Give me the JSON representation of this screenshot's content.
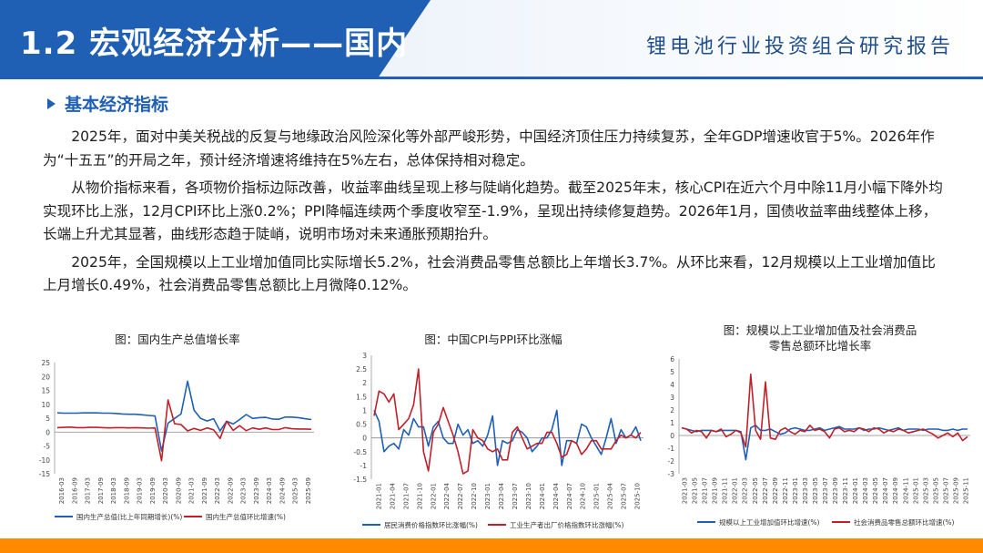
{
  "header": {
    "title": "1.2 宏观经济分析——国内",
    "report_name": "锂电池行业投资组合研究报告"
  },
  "section": {
    "heading": "基本经济指标",
    "paragraphs": [
      "2025年，面对中美关税战的反复与地缘政治风险深化等外部严峻形势，中国经济顶住压力持续复苏，全年GDP增速收官于5%。2026年作为“十五五”的开局之年，预计经济增速将维持在5%左右，总体保持相对稳定。",
      "从物价指标来看，各项物价指标边际改善，收益率曲线呈现上移与陡峭化趋势。截至2025年末，核心CPI在近六个月中除11月小幅下降外均实现环比上涨，12月CPI环比上涨0.2%；PPI降幅连续两个季度收窄至-1.9%，呈现出持续修复趋势。2026年1月，国债收益率曲线整体上移，长端上升尤其显著，曲线形态趋于陡峭，说明市场对未来通胀预期抬升。",
      "2025年，全国规模以上工业增加值同比实际增长5.2%，社会消费品零售总额比上年增长3.7%。从环比来看，12月规模以上工业增加值比上月增长0.49%，社会消费品零售总额比上月微降0.12%。"
    ]
  },
  "colors": {
    "accent": "#1f5fb4",
    "series_blue": "#1f5fb4",
    "series_red": "#c0202a",
    "footer": "#ff8a00"
  },
  "chart_data": [
    {
      "type": "line",
      "title": "图：国内生产总值增长率",
      "ylim": [
        -15,
        25
      ],
      "yticks": [
        "25",
        "20",
        "15",
        "10",
        "5",
        "0",
        "-5",
        "-10",
        "-15"
      ],
      "xticks": [
        "2016-03",
        "2016-09",
        "2017-03",
        "2017-09",
        "2018-03",
        "2018-09",
        "2019-03",
        "2019-09",
        "2020-03",
        "2020-09",
        "2021-03",
        "2021-09",
        "2022-03",
        "2022-09",
        "2023-03",
        "2023-09",
        "2024-03",
        "2024-09",
        "2025-03",
        "2025-09"
      ],
      "series": [
        {
          "name": "国内生产总值(比上年同期增长)(%)",
          "color": "#1f5fb4",
          "values": [
            6.9,
            6.8,
            6.8,
            6.8,
            6.9,
            6.9,
            6.9,
            6.8,
            6.8,
            6.7,
            6.5,
            6.4,
            6.4,
            6.2,
            6.0,
            5.8,
            -6.8,
            3.2,
            4.9,
            6.5,
            18.3,
            7.9,
            4.9,
            4.0,
            4.8,
            0.4,
            3.9,
            2.9,
            4.5,
            6.3,
            4.9,
            5.2,
            5.3,
            4.7,
            4.6,
            5.4,
            5.4,
            5.2,
            4.8,
            4.5
          ]
        },
        {
          "name": "国内生产总值环比增速(%)",
          "color": "#c0202a",
          "values": [
            1.6,
            1.7,
            1.8,
            1.6,
            1.6,
            1.7,
            1.7,
            1.6,
            1.5,
            1.6,
            1.6,
            1.5,
            1.6,
            1.5,
            1.4,
            1.5,
            -10.3,
            11.6,
            3.0,
            2.7,
            0.4,
            1.3,
            0.6,
            1.5,
            0.8,
            -2.3,
            3.9,
            0.6,
            2.3,
            0.5,
            1.5,
            1.0,
            1.5,
            0.9,
            0.9,
            1.6,
            1.2,
            1.1,
            1.1,
            1.0
          ]
        }
      ]
    },
    {
      "type": "line",
      "title": "图：中国CPI与PPI环比涨幅",
      "ylim": [
        -1.5,
        3
      ],
      "yticks": [
        "3",
        "2.5",
        "2",
        "1.5",
        "1",
        "0.5",
        "0",
        "-0.5",
        "-1",
        "-1.5"
      ],
      "xticks": [
        "2021-01",
        "2021-04",
        "2021-07",
        "2021-10",
        "2022-01",
        "2022-04",
        "2022-07",
        "2022-10",
        "2023-01",
        "2023-04",
        "2023-07",
        "2023-10",
        "2024-01",
        "2024-04",
        "2024-07",
        "2024-10",
        "2025-01",
        "2025-04",
        "2025-07",
        "2025-10"
      ],
      "series": [
        {
          "name": "居民消费价格指数环比涨幅(%)",
          "color": "#1f5fb4",
          "values": [
            1.0,
            0.6,
            -0.5,
            -0.3,
            -0.2,
            -0.4,
            0.3,
            0.1,
            0.7,
            0.4,
            0.4,
            -0.3,
            0.4,
            0.6,
            0.0,
            -0.2,
            -0.2,
            0.5,
            0.1,
            0.3,
            -0.2,
            -0.1,
            -0.3,
            0.1,
            0.8,
            -1.0,
            -0.1,
            -0.2,
            -0.1,
            0.3,
            0.2,
            0.0,
            -0.5,
            -0.3,
            0.0,
            0.0,
            0.3,
            1.0,
            -1.0,
            -0.1,
            -0.1,
            -0.2,
            0.5,
            0.4,
            0.0,
            -0.3,
            -0.6,
            0.0,
            0.7,
            -0.2,
            0.3,
            0.0,
            0.1,
            0.4,
            -0.1
          ]
        },
        {
          "name": "工业生产者出厂价格指数环比涨幅(%)",
          "color": "#c0202a",
          "values": [
            0.8,
            1.7,
            1.6,
            1.3,
            1.6,
            0.3,
            0.5,
            0.7,
            1.2,
            2.5,
            -0.5,
            -1.2,
            0.2,
            0.5,
            1.1,
            0.6,
            0.1,
            -0.5,
            -1.3,
            -1.2,
            0.3,
            0.0,
            -0.1,
            -0.4,
            -0.5,
            -0.4,
            -0.8,
            -0.8,
            0.2,
            0.4,
            0.0,
            -0.4,
            -0.3,
            -0.2,
            -0.2,
            0.2,
            0.2,
            -0.2,
            -0.7,
            -0.6,
            -0.1,
            -0.2,
            -0.6,
            -0.4,
            -0.1,
            -0.1,
            -0.4,
            -0.4,
            -0.4,
            -0.1,
            0.1,
            0.0,
            0.1,
            0.0,
            0.2
          ]
        }
      ]
    },
    {
      "type": "line",
      "title": "图：规模以上工业增加值及社会消费品零售总额环比增长率",
      "title_lines": [
        "图：规模以上工业增加值及社会消费品",
        "零售总额环比增长率"
      ],
      "ylim": [
        -3,
        6
      ],
      "yticks": [
        "6",
        "5",
        "4",
        "3",
        "2",
        "1",
        "0",
        "-1",
        "-2",
        "-3"
      ],
      "xticks": [
        "2021-03",
        "2021-05",
        "2021-07",
        "2021-09",
        "2021-11",
        "2022-01",
        "2022-03",
        "2022-05",
        "2022-07",
        "2022-09",
        "2022-11",
        "2023-01",
        "2023-03",
        "2023-05",
        "2023-07",
        "2023-09",
        "2023-11",
        "2024-01",
        "2024-03",
        "2024-05",
        "2024-07",
        "2024-09",
        "2024-11",
        "2025-01",
        "2025-03",
        "2025-05",
        "2025-07",
        "2025-09",
        "2025-11"
      ],
      "series": [
        {
          "name": "规模以上工业增加值环比增速(%)",
          "color": "#1f5fb4",
          "values": [
            0.6,
            0.5,
            0.4,
            0.3,
            0.4,
            0.4,
            0.4,
            0.3,
            0.4,
            0.4,
            0.4,
            0.4,
            0.3,
            -1.9,
            0.6,
            0.8,
            0.4,
            0.4,
            0.5,
            0.3,
            0.1,
            0.2,
            0.5,
            0.6,
            0.5,
            0.4,
            0.4,
            0.5,
            0.6,
            0.4,
            0.5,
            0.6,
            0.7,
            0.5,
            0.5,
            0.5,
            0.6,
            0.4,
            0.5,
            0.5,
            0.6,
            0.5,
            0.4,
            0.5,
            0.6,
            0.4,
            0.5,
            0.5,
            0.5,
            0.4,
            0.5,
            0.5,
            0.5,
            0.4,
            0.4,
            0.5,
            0.4,
            0.5,
            0.5
          ]
        },
        {
          "name": "社会消费品零售总额环比增速(%)",
          "color": "#c0202a",
          "values": [
            0.6,
            0.5,
            0.2,
            0.4,
            0.3,
            -0.2,
            0.4,
            0.3,
            0.5,
            -0.1,
            0.1,
            0.4,
            0.2,
            -0.9,
            4.8,
            0.4,
            -0.3,
            4.2,
            -0.2,
            -0.3,
            0.4,
            0.6,
            0.3,
            0.1,
            0.4,
            0.3,
            0.8,
            0.4,
            0.5,
            0.3,
            -0.2,
            0.5,
            0.6,
            0.3,
            0.4,
            0.3,
            0.6,
            0.5,
            0.3,
            0.6,
            0.5,
            0.2,
            0.4,
            0.3,
            0.5,
            0.4,
            0.2,
            0.3,
            0.4,
            0.5,
            0.3,
            0.1,
            -0.2,
            0.0,
            0.2,
            -0.1,
            0.2,
            -0.4,
            -0.1
          ]
        }
      ]
    }
  ]
}
